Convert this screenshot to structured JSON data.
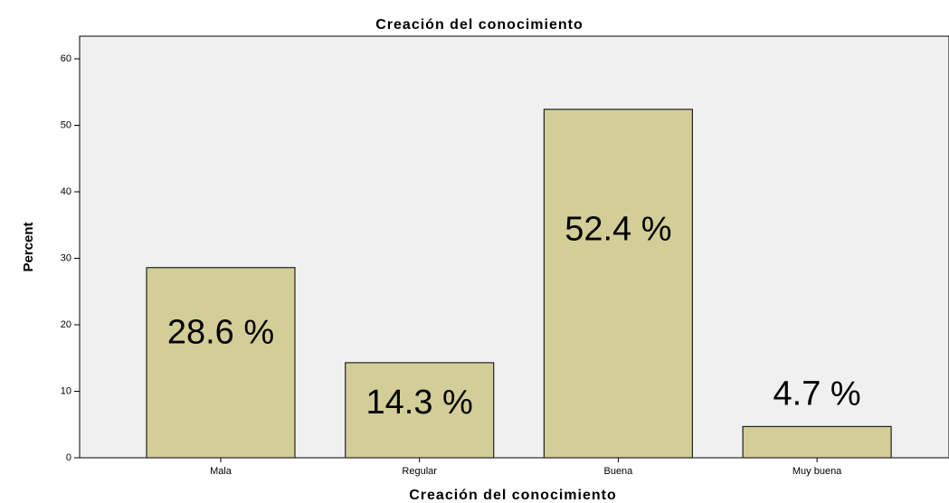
{
  "chart_data": {
    "type": "bar",
    "title": "Creación del conocimiento",
    "x_label": "Creación del conocimiento",
    "y_label": "Percent",
    "categories": [
      "Mala",
      "Regular",
      "Buena",
      "Muy buena"
    ],
    "values": [
      28.6,
      14.3,
      52.4,
      4.7
    ],
    "value_labels": [
      "28.6 %",
      "14.3 %",
      "52.4 %",
      "4.7 %"
    ],
    "color": "#d3ce97",
    "ylim": [
      0,
      63.4
    ],
    "yticks": [
      0,
      10,
      20,
      30,
      40,
      50,
      60
    ]
  }
}
